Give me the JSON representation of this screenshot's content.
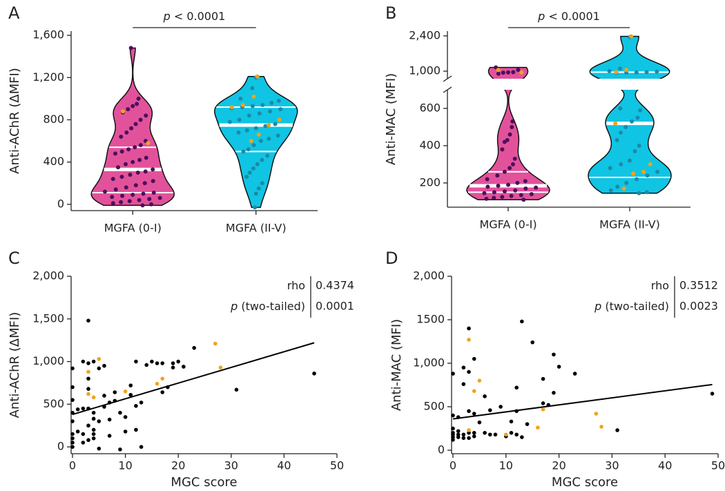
{
  "chart_data": [
    {
      "type": "violin",
      "panel": "A",
      "ylabel": "Anti-AChR (ΔMFI)",
      "ylim": [
        -60,
        1640
      ],
      "yticks": [
        0,
        400,
        800,
        {
          "value": 1200,
          "label": "1,200"
        },
        {
          "value": 1600,
          "label": "1,600"
        }
      ],
      "annotation": {
        "symbol": "p",
        "text": "< 0.0001"
      },
      "categories": [
        "MGFA (0-I)",
        "MGFA (II-V)"
      ],
      "groups": [
        {
          "color": "#e2529b",
          "point_color": "#4d0f5c",
          "highlight_color": "#f0a31a",
          "values": [
            1480,
            1000,
            950,
            930,
            900,
            870,
            840,
            800,
            760,
            720,
            680,
            640,
            600,
            560,
            540,
            520,
            500,
            480,
            440,
            420,
            400,
            380,
            350,
            330,
            310,
            300,
            280,
            260,
            240,
            220,
            200,
            180,
            160,
            140,
            120,
            110,
            100,
            90,
            80,
            70,
            60,
            50,
            40,
            30,
            20,
            10,
            0,
            -10
          ],
          "highlight_values": [
            880,
            580
          ],
          "q1": 110,
          "median": 330,
          "q3": 540
        },
        {
          "color": "#10c4e4",
          "point_color": "#1c8aa6",
          "highlight_color": "#f0a31a",
          "values": [
            1200,
            1100,
            1000,
            980,
            960,
            940,
            930,
            920,
            910,
            900,
            880,
            860,
            840,
            800,
            780,
            760,
            740,
            720,
            700,
            680,
            650,
            620,
            600,
            560,
            520,
            500,
            460,
            420,
            380,
            340,
            300,
            260,
            200,
            150,
            100,
            -30
          ],
          "highlight_values": [
            1210,
            1020,
            940,
            920,
            800,
            750,
            660,
            600
          ],
          "q1": 500,
          "median": 750,
          "q3": 920
        }
      ]
    },
    {
      "type": "violin",
      "panel": "B",
      "ylabel": "Anti-MAC (MFI)",
      "y_segments": [
        {
          "ylim": [
            70,
            700
          ],
          "yticks": [
            200,
            400,
            600
          ]
        },
        {
          "ylim": [
            700,
            2590
          ],
          "yticks": [
            {
              "value": 1000,
              "label": "1,000"
            },
            {
              "value": 2400,
              "label": "2,400"
            }
          ]
        }
      ],
      "annotation": {
        "symbol": "p",
        "text": "< 0.0001"
      },
      "categories": [
        "MGFA (0-I)",
        "MGFA (II-V)"
      ],
      "groups": [
        {
          "color": "#e2529b",
          "point_color": "#4d0f5c",
          "highlight_color": "#f0a31a",
          "values": [
            1150,
            1050,
            960,
            950,
            940,
            900,
            530,
            500,
            460,
            430,
            420,
            380,
            330,
            300,
            280,
            260,
            240,
            220,
            210,
            200,
            190,
            185,
            180,
            175,
            170,
            160,
            155,
            150,
            145,
            140,
            135,
            130,
            125,
            120,
            115,
            110
          ],
          "highlight_values": [
            1050,
            950
          ],
          "q1": 150,
          "median": 185,
          "q3": 260
        },
        {
          "color": "#10c4e4",
          "point_color": "#1c8aa6",
          "highlight_color": "#f0a31a",
          "values": [
            2350,
            1100,
            1000,
            980,
            960,
            950,
            940,
            930,
            600,
            590,
            550,
            530,
            500,
            470,
            430,
            400,
            370,
            320,
            300,
            280,
            260,
            240,
            220,
            200,
            180,
            160,
            150,
            145
          ],
          "highlight_values": [
            2380,
            1050,
            960,
            520,
            300,
            260,
            250,
            170
          ],
          "q1": 230,
          "median": 520,
          "q3": 960
        }
      ]
    },
    {
      "type": "scatter",
      "panel": "C",
      "xlabel": "MGC score",
      "ylabel": "Anti-AChR (ΔMFI)",
      "xlim": [
        0,
        50
      ],
      "xticks": [
        0,
        10,
        20,
        30,
        40,
        50
      ],
      "ylim": [
        -80,
        2000
      ],
      "yticks": [
        0,
        500,
        {
          "value": 1000,
          "label": "1,000"
        },
        {
          "value": 1500,
          "label": "1,500"
        },
        {
          "value": 2000,
          "label": "2,000"
        }
      ],
      "series": [
        {
          "color": "#000000",
          "x": [
            0,
            0,
            0,
            0,
            0,
            0,
            0,
            0,
            0,
            1,
            1,
            2,
            2,
            2,
            2,
            3,
            3,
            3,
            3,
            3,
            3,
            3,
            4,
            4,
            4,
            4,
            4,
            4,
            5,
            5,
            5,
            6,
            6,
            6,
            7,
            7,
            7,
            8,
            8,
            9,
            9,
            10,
            10,
            11,
            11,
            12,
            12,
            12,
            13,
            13,
            14,
            15,
            16,
            17,
            17,
            18,
            19,
            19,
            20,
            21,
            23,
            31,
            45.7
          ],
          "values": [
            920,
            700,
            550,
            400,
            100,
            50,
            0,
            150,
            300,
            180,
            440,
            1000,
            450,
            150,
            50,
            1480,
            980,
            800,
            680,
            450,
            250,
            80,
            1000,
            400,
            330,
            200,
            150,
            100,
            -20,
            920,
            300,
            950,
            600,
            470,
            520,
            320,
            130,
            640,
            540,
            400,
            -30,
            180,
            350,
            610,
            720,
            200,
            1000,
            480,
            520,
            0,
            960,
            1000,
            980,
            640,
            980,
            700,
            930,
            980,
            1000,
            940,
            1160,
            670,
            860
          ]
        },
        {
          "color": "#f0a31a",
          "x": [
            3,
            3,
            4,
            5,
            10,
            16,
            17,
            27,
            28
          ],
          "values": [
            620,
            880,
            580,
            1030,
            650,
            740,
            800,
            1210,
            930
          ]
        }
      ],
      "trend": {
        "color": "#000000",
        "x": [
          0,
          45.7
        ],
        "values": [
          380,
          1220
        ]
      },
      "stats": [
        {
          "label": "rho",
          "value": 0.4374
        },
        {
          "symbol": "p",
          "label": "(two-tailed)",
          "value": 0.0001
        }
      ]
    },
    {
      "type": "scatter",
      "panel": "D",
      "xlabel": "MGC score",
      "ylabel": "Anti-MAC (MFI)",
      "xlim": [
        0,
        50
      ],
      "xticks": [
        0,
        10,
        20,
        30,
        40,
        50
      ],
      "ylim": [
        -40,
        2000
      ],
      "yticks": [
        0,
        500,
        {
          "value": 1000,
          "label": "1,000"
        },
        1500,
        {
          "value": 2000,
          "label": "2,000"
        }
      ],
      "series": [
        {
          "color": "#000000",
          "x": [
            0,
            0,
            0,
            0,
            0,
            0,
            0,
            1,
            1,
            1,
            1,
            2,
            2,
            2,
            2,
            3,
            3,
            3,
            3,
            3,
            4,
            4,
            4,
            4,
            5,
            6,
            6,
            7,
            7,
            8,
            9,
            10,
            11,
            11,
            12,
            12,
            12,
            13,
            13,
            14,
            15,
            17,
            17,
            18,
            19,
            19,
            20,
            23,
            31,
            48.9
          ],
          "values": [
            880,
            400,
            250,
            180,
            150,
            120,
            200,
            380,
            220,
            180,
            150,
            950,
            760,
            180,
            140,
            1400,
            900,
            450,
            200,
            140,
            1050,
            420,
            200,
            160,
            320,
            620,
            200,
            460,
            180,
            180,
            500,
            160,
            200,
            330,
            720,
            450,
            180,
            1480,
            150,
            300,
            1240,
            540,
            820,
            520,
            660,
            1100,
            960,
            880,
            230,
            650
          ]
        },
        {
          "color": "#f0a31a",
          "x": [
            3,
            3,
            4,
            5,
            10,
            16,
            17,
            27,
            28
          ],
          "values": [
            1270,
            230,
            680,
            800,
            180,
            260,
            470,
            420,
            270
          ]
        }
      ],
      "trend": {
        "color": "#000000",
        "x": [
          0,
          48.9
        ],
        "values": [
          360,
          755
        ]
      },
      "stats": [
        {
          "label": "rho",
          "value": 0.3512
        },
        {
          "symbol": "p",
          "label": "(two-tailed)",
          "value": 0.0023
        }
      ]
    }
  ]
}
